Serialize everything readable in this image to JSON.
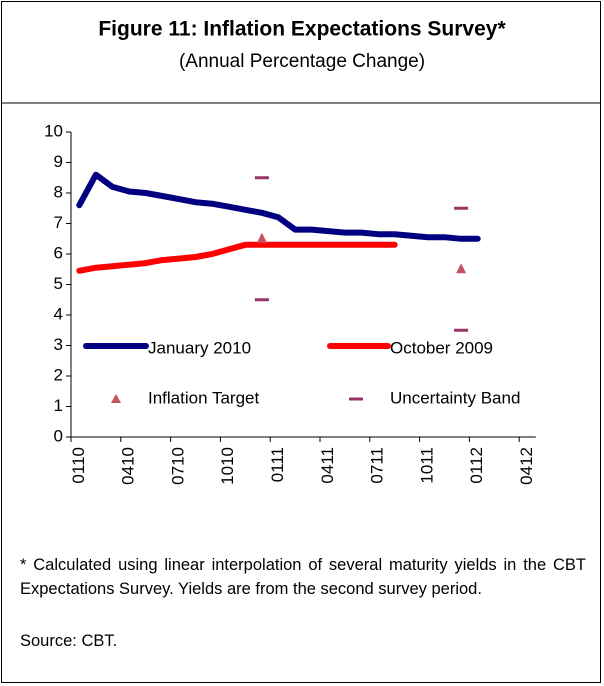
{
  "chart_data": {
    "type": "line",
    "title": "Figure 11: Inflation Expectations Survey*",
    "subtitle": "(Annual Percentage Change)",
    "categories": [
      "0110",
      null,
      null,
      "0410",
      null,
      null,
      "0710",
      null,
      null,
      "1010",
      null,
      null,
      "0111",
      null,
      null,
      "0411",
      null,
      null,
      "0711",
      null,
      null,
      "1011",
      null,
      null,
      "0112",
      null,
      null,
      "0412"
    ],
    "series": [
      {
        "name": "January 2010",
        "color": "#000080",
        "values": [
          7.6,
          8.6,
          8.2,
          8.05,
          8.0,
          7.9,
          7.8,
          7.7,
          7.65,
          7.55,
          7.45,
          7.35,
          7.2,
          6.8,
          6.8,
          6.75,
          6.7,
          6.7,
          6.65,
          6.65,
          6.6,
          6.55,
          6.55,
          6.5,
          6.5,
          null,
          null,
          null
        ]
      },
      {
        "name": "October 2009",
        "color": "#ff0000",
        "values": [
          5.45,
          5.55,
          5.6,
          5.65,
          5.7,
          5.8,
          5.85,
          5.9,
          6.0,
          6.15,
          6.3,
          6.3,
          6.3,
          6.3,
          6.3,
          6.3,
          6.3,
          6.3,
          6.3,
          6.3,
          null,
          null,
          null,
          null,
          null,
          null,
          null,
          null
        ]
      },
      {
        "name": "Inflation Target",
        "color": "#c8505f",
        "marker": "triangle",
        "values": [
          null,
          null,
          null,
          null,
          null,
          null,
          null,
          null,
          null,
          null,
          null,
          6.5,
          null,
          null,
          null,
          null,
          null,
          null,
          null,
          null,
          null,
          null,
          null,
          5.5,
          null,
          null,
          null,
          null
        ]
      },
      {
        "name": "Uncertainty Band",
        "color": "#993366",
        "marker": "dash",
        "upper": [
          null,
          null,
          null,
          null,
          null,
          null,
          null,
          null,
          null,
          null,
          null,
          8.5,
          null,
          null,
          null,
          null,
          null,
          null,
          null,
          null,
          null,
          null,
          null,
          7.5,
          null,
          null,
          null,
          null
        ],
        "lower": [
          null,
          null,
          null,
          null,
          null,
          null,
          null,
          null,
          null,
          null,
          null,
          4.5,
          null,
          null,
          null,
          null,
          null,
          null,
          null,
          null,
          null,
          null,
          null,
          3.5,
          null,
          null,
          null,
          null
        ]
      }
    ],
    "ylim": [
      0,
      10
    ],
    "yticks": [
      0,
      1,
      2,
      3,
      4,
      5,
      6,
      7,
      8,
      9,
      10
    ],
    "footnote": "* Calculated using linear interpolation of several maturity yields in the CBT Expectations Survey. Yields are from the second survey period.",
    "source": "Source: CBT."
  }
}
